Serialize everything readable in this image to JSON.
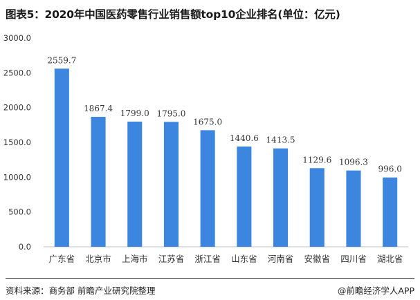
{
  "title": "图表5：2020年中国医药零售行业销售额top10企业排名(单位：亿元)",
  "source": "资料来源：商务部 前瞻产业研究院整理",
  "credit": "@前瞻经济学人APP",
  "colors": {
    "bar": "#3D86DF",
    "axis": "#bfbfbf",
    "text": "#333333"
  },
  "chart_data": {
    "type": "bar",
    "title": "图表5：2020年中国医药零售行业销售额top10企业排名(单位：亿元)",
    "categories": [
      "广东省",
      "北京市",
      "上海市",
      "江苏省",
      "浙江省",
      "山东省",
      "河南省",
      "安徽省",
      "四川省",
      "湖北省"
    ],
    "values": [
      2559.7,
      1867.4,
      1799.0,
      1795.0,
      1675.0,
      1440.6,
      1413.5,
      1129.6,
      1096.3,
      996.0
    ],
    "value_labels": [
      "2559.7",
      "1867.4",
      "1799.0",
      "1795.0",
      "1675.0",
      "1440.6",
      "1413.5",
      "1129.6",
      "1096.3",
      "996.0"
    ],
    "yticks": [
      "0.0",
      "500.0",
      "1000.0",
      "1500.0",
      "2000.0",
      "2500.0",
      "3000.0"
    ],
    "ylim": [
      0,
      3000
    ],
    "xlabel": "",
    "ylabel": "",
    "grid": false,
    "legend": "none"
  }
}
